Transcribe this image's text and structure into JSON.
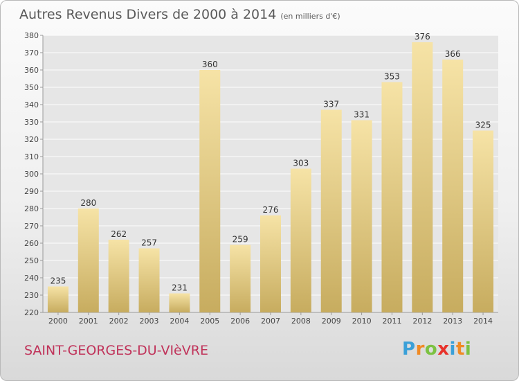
{
  "header": {
    "title": "Autres Revenus Divers de 2000 à 2014",
    "subtitle": "(en milliers d'€)"
  },
  "footer": {
    "city": "SAINT-GEORGES-DU-VIèVRE",
    "logo_letters": [
      "P",
      "r",
      "o",
      "x",
      "i",
      "t",
      "i"
    ],
    "logo_colors": [
      "#3aa0d8",
      "#f08a24",
      "#7cc242",
      "#e8322b",
      "#3aa0d8",
      "#f08a24",
      "#7cc242"
    ]
  },
  "colors": {
    "bar_light": "#f6e3a6",
    "bar_dark": "#c7ac5f",
    "grid": "#ffffff",
    "axis_text": "#444444"
  },
  "chart_data": {
    "type": "bar",
    "categories": [
      "2000",
      "2001",
      "2002",
      "2003",
      "2004",
      "2005",
      "2006",
      "2007",
      "2008",
      "2009",
      "2010",
      "2011",
      "2012",
      "2013",
      "2014"
    ],
    "values": [
      235,
      280,
      262,
      257,
      231,
      360,
      259,
      276,
      303,
      337,
      331,
      353,
      376,
      366,
      325
    ],
    "title": "Autres Revenus Divers de 2000 à 2014",
    "subtitle": "(en milliers d'€)",
    "ylim": [
      220,
      380
    ],
    "yticks": [
      220,
      230,
      240,
      250,
      260,
      270,
      280,
      290,
      300,
      310,
      320,
      330,
      340,
      350,
      360,
      370,
      380
    ],
    "grid": true,
    "data_labels": true
  }
}
